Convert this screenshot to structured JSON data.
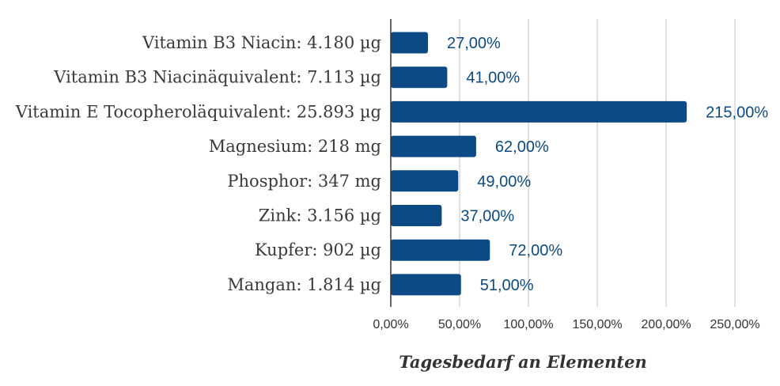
{
  "chart_data": {
    "type": "bar",
    "orientation": "horizontal",
    "categories": [
      "Vitamin B3 Niacin: 4.180 µg",
      "Vitamin B3 Niacinäquivalent: 7.113 µg",
      "Vitamin E Tocopheroläquivalent: 25.893 µg",
      "Magnesium: 218 mg",
      "Phosphor: 347 mg",
      "Zink: 3.156 µg",
      "Kupfer: 902 µg",
      "Mangan: 1.814 µg"
    ],
    "values": [
      27,
      41,
      215,
      62,
      49,
      37,
      72,
      51
    ],
    "data_labels": [
      "27,00%",
      "41,00%",
      "215,00%",
      "62,00%",
      "49,00%",
      "37,00%",
      "72,00%",
      "51,00%"
    ],
    "xlim": [
      0,
      250
    ],
    "xticks": [
      0,
      50,
      100,
      150,
      200,
      250
    ],
    "xtick_labels": [
      "0,00%",
      "50,00%",
      "100,00%",
      "150,00%",
      "200,00%",
      "250,00%"
    ],
    "xlabel": "Tagesbedarf an Elementen",
    "ylabel": "",
    "title": "",
    "grid": "vertical",
    "legend": "none",
    "colors": {
      "bar": "#0b4a84",
      "label": "#0b4a84",
      "grid": "#cccccc",
      "axis": "#333333"
    }
  }
}
